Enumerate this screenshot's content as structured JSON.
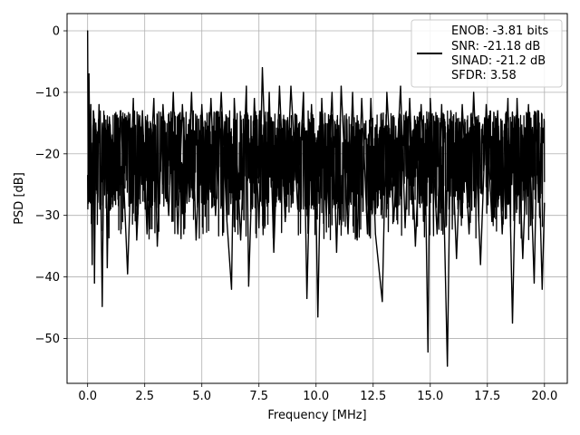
{
  "chart_data": {
    "type": "line",
    "title": "",
    "xlabel": "Frequency [MHz]",
    "ylabel": "PSD [dB]",
    "xlim": [
      -0.9,
      21.0
    ],
    "ylim": [
      -57.3,
      2.8
    ],
    "x_ticks": [
      0.0,
      2.5,
      5.0,
      7.5,
      10.0,
      12.5,
      15.0,
      17.5,
      20.0
    ],
    "x_tick_labels": [
      "0.0",
      "2.5",
      "5.0",
      "7.5",
      "10.0",
      "12.5",
      "15.0",
      "17.5",
      "20.0"
    ],
    "y_ticks": [
      0,
      -10,
      -20,
      -30,
      -40,
      -50
    ],
    "y_tick_labels": [
      "0",
      "−10",
      "−20",
      "−30",
      "−40",
      "−50"
    ],
    "grid": true,
    "legend_position": "top-right",
    "series": [
      {
        "name": "",
        "color": "#000000",
        "x_range": [
          0.0,
          20.0
        ],
        "points": [
          [
            0.0,
            0.0
          ],
          [
            0.03,
            -28
          ],
          [
            0.06,
            -7
          ],
          [
            0.1,
            -22
          ],
          [
            0.14,
            -12
          ],
          [
            0.2,
            -38
          ],
          [
            0.25,
            -13
          ],
          [
            0.3,
            -41
          ],
          [
            0.36,
            -15
          ],
          [
            0.42,
            -24
          ],
          [
            0.5,
            -12
          ],
          [
            0.58,
            -27
          ],
          [
            0.64,
            -44.8
          ],
          [
            0.72,
            -14
          ],
          [
            0.82,
            -25
          ],
          [
            0.86,
            -38.5
          ],
          [
            0.95,
            -14
          ],
          [
            1.2,
            -27
          ],
          [
            1.45,
            -13
          ],
          [
            1.75,
            -39.5
          ],
          [
            2.0,
            -11
          ],
          [
            2.15,
            -34
          ],
          [
            2.4,
            -13
          ],
          [
            2.6,
            -33
          ],
          [
            2.9,
            -11
          ],
          [
            3.05,
            -35
          ],
          [
            3.3,
            -12
          ],
          [
            3.55,
            -30
          ],
          [
            3.75,
            -10
          ],
          [
            3.95,
            -33
          ],
          [
            4.15,
            -12
          ],
          [
            4.35,
            -28
          ],
          [
            4.55,
            -10
          ],
          [
            4.75,
            -34
          ],
          [
            5.0,
            -12
          ],
          [
            5.2,
            -28
          ],
          [
            5.4,
            -11
          ],
          [
            5.6,
            -30
          ],
          [
            5.85,
            -10
          ],
          [
            6.1,
            -31
          ],
          [
            6.3,
            -42
          ],
          [
            6.42,
            -11
          ],
          [
            6.7,
            -34
          ],
          [
            6.95,
            -9
          ],
          [
            7.05,
            -41.5
          ],
          [
            7.3,
            -11
          ],
          [
            7.5,
            -32
          ],
          [
            7.65,
            -6
          ],
          [
            7.85,
            -28
          ],
          [
            7.95,
            -10
          ],
          [
            8.15,
            -36
          ],
          [
            8.4,
            -9
          ],
          [
            8.65,
            -31
          ],
          [
            8.9,
            -9
          ],
          [
            9.2,
            -29
          ],
          [
            9.45,
            -10
          ],
          [
            9.6,
            -43.5
          ],
          [
            9.8,
            -12
          ],
          [
            10.0,
            -29
          ],
          [
            10.08,
            -46.5
          ],
          [
            10.25,
            -11
          ],
          [
            10.45,
            -30
          ],
          [
            10.7,
            -10
          ],
          [
            10.9,
            -36
          ],
          [
            11.1,
            -9
          ],
          [
            11.4,
            -33
          ],
          [
            11.6,
            -10
          ],
          [
            11.8,
            -34
          ],
          [
            12.0,
            -11
          ],
          [
            12.25,
            -33
          ],
          [
            12.4,
            -11
          ],
          [
            12.6,
            -33
          ],
          [
            12.9,
            -44
          ],
          [
            13.1,
            -10
          ],
          [
            13.4,
            -31
          ],
          [
            13.7,
            -9
          ],
          [
            13.9,
            -32
          ],
          [
            14.1,
            -11
          ],
          [
            14.35,
            -35
          ],
          [
            14.6,
            -12
          ],
          [
            14.8,
            -27
          ],
          [
            14.9,
            -52.2
          ],
          [
            15.0,
            -11
          ],
          [
            15.3,
            -33
          ],
          [
            15.5,
            -12
          ],
          [
            15.75,
            -54.5
          ],
          [
            15.9,
            -13
          ],
          [
            16.15,
            -37
          ],
          [
            16.4,
            -12
          ],
          [
            16.7,
            -33
          ],
          [
            16.9,
            -10
          ],
          [
            17.2,
            -38
          ],
          [
            17.45,
            -12
          ],
          [
            17.7,
            -31
          ],
          [
            17.95,
            -13
          ],
          [
            18.15,
            -33
          ],
          [
            18.4,
            -11
          ],
          [
            18.6,
            -47.5
          ],
          [
            18.8,
            -11
          ],
          [
            19.05,
            -37
          ],
          [
            19.3,
            -12
          ],
          [
            19.55,
            -41
          ],
          [
            19.7,
            -13
          ],
          [
            19.9,
            -42
          ],
          [
            20.0,
            -28
          ]
        ]
      }
    ],
    "legend_entries": [
      "ENOB: -3.81 bits",
      "SNR: -21.18 dB",
      "SINAD: -21.2 dB",
      "SFDR: 3.58"
    ]
  }
}
